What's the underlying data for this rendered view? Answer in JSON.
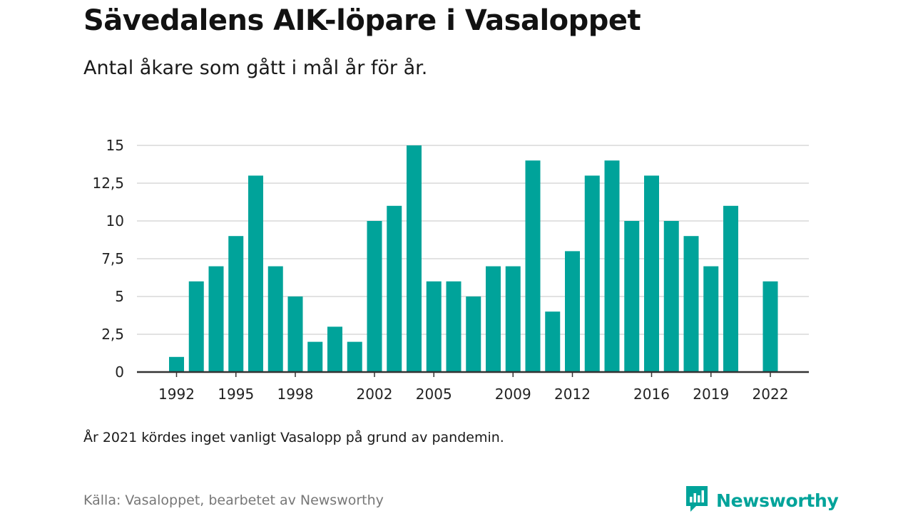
{
  "title": "Sävedalens AIK-löpare i Vasaloppet",
  "subtitle": "Antal åkare som gått i mål år för år.",
  "note": "År 2021 kördes inget vanligt Vasalopp på grund av pandemin.",
  "source": "Källa: Vasaloppet, bearbetet av Newsworthy",
  "brand": {
    "name": "Newsworthy",
    "icon": "newsworthy-logo-icon"
  },
  "colors": {
    "bar": "#00a39a",
    "grid": "#d9d9d9",
    "axis": "#333333",
    "brand": "#00a39a"
  },
  "chart_data": {
    "type": "bar",
    "title": "Sävedalens AIK-löpare i Vasaloppet",
    "subtitle": "Antal åkare som gått i mål år för år.",
    "xlabel": "",
    "ylabel": "",
    "categories": [
      1992,
      1993,
      1994,
      1995,
      1996,
      1997,
      1998,
      1999,
      2000,
      2001,
      2002,
      2003,
      2004,
      2005,
      2006,
      2007,
      2008,
      2009,
      2010,
      2011,
      2012,
      2013,
      2014,
      2015,
      2016,
      2017,
      2018,
      2019,
      2020,
      2021,
      2022
    ],
    "values": [
      1,
      6,
      7,
      9,
      13,
      7,
      5,
      2,
      3,
      2,
      10,
      11,
      15,
      6,
      6,
      5,
      7,
      7,
      14,
      4,
      8,
      13,
      14,
      10,
      13,
      10,
      9,
      7,
      11,
      null,
      6
    ],
    "ylim": [
      0,
      15
    ],
    "yticks": [
      0,
      2.5,
      5,
      7.5,
      10,
      12.5,
      15
    ],
    "ytick_labels": [
      "0",
      "2,5",
      "5",
      "7,5",
      "10",
      "12,5",
      "15"
    ],
    "xtick_labels": [
      "1992",
      "1995",
      "1998",
      "2002",
      "2005",
      "2009",
      "2012",
      "2016",
      "2019",
      "2022"
    ],
    "grid": true,
    "legend": "none"
  }
}
